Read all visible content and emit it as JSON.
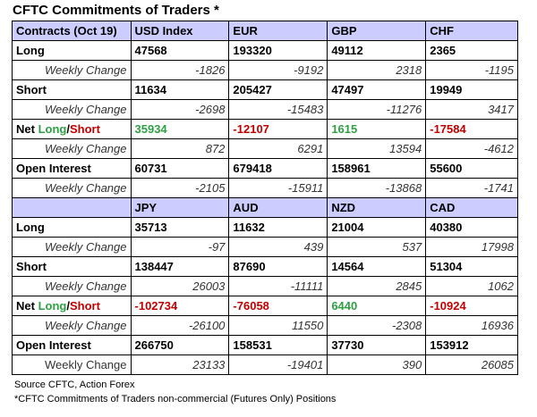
{
  "title": "CFTC Commitments of Traders *",
  "top_section": {
    "header": [
      "Contracts (Oct 19)",
      "USD Index",
      "EUR",
      "GBP",
      "CHF"
    ],
    "long_label": "Long",
    "long": [
      "47568",
      "193320",
      "49112",
      "2365"
    ],
    "long_change_label": "Weekly Change",
    "long_change": [
      "-1826",
      "-9192",
      "2318",
      "-1195"
    ],
    "short_label": "Short",
    "short": [
      "11634",
      "205427",
      "47497",
      "19949"
    ],
    "short_change_label": "Weekly Change",
    "short_change": [
      "-2698",
      "-15483",
      "-11276",
      "3417"
    ],
    "net_label_prefix": "Net ",
    "net_label_long": "Long",
    "net_label_sep": "/",
    "net_label_short": "Short",
    "net": [
      "35934",
      "-12107",
      "1615",
      "-17584"
    ],
    "net_change_label": "Weekly Change",
    "net_change": [
      "872",
      "6291",
      "13594",
      "-4612"
    ],
    "oi_label": "Open Interest",
    "oi": [
      "60731",
      "679418",
      "158961",
      "55600"
    ],
    "oi_change_label": "Weekly Change",
    "oi_change": [
      "-2105",
      "-15911",
      "-13868",
      "-1741"
    ]
  },
  "bottom_section": {
    "header": [
      "",
      "JPY",
      "AUD",
      "NZD",
      "CAD"
    ],
    "long_label": "Long",
    "long": [
      "35713",
      "11632",
      "21004",
      "40380"
    ],
    "long_change_label": "Weekly Change",
    "long_change": [
      "-97",
      "439",
      "537",
      "17998"
    ],
    "short_label": "Short",
    "short": [
      "138447",
      "87690",
      "14564",
      "51304"
    ],
    "short_change_label": "Weekly Change",
    "short_change": [
      "26003",
      "-11111",
      "2845",
      "1062"
    ],
    "net_label_prefix": "Net ",
    "net_label_long": "Long",
    "net_label_sep": "/",
    "net_label_short": "Short",
    "net": [
      "-102734",
      "-76058",
      "6440",
      "-10924"
    ],
    "net_change_label": "Weekly Change",
    "net_change": [
      "-26100",
      "11550",
      "-2308",
      "16936"
    ],
    "oi_label": "Open Interest",
    "oi": [
      "266750",
      "158531",
      "37730",
      "153912"
    ],
    "oi_change_label": "Weekly Change",
    "oi_change": [
      "23133",
      "-19401",
      "390",
      "26085"
    ]
  },
  "colors": {
    "header_bg": "#ccccff",
    "positive_net": "#2ea043",
    "negative_net": "#c00000"
  },
  "footer": {
    "source": "Source CFTC, Action Forex",
    "note": "*CFTC Commitments of Traders non-commercial (Futures Only) Positions"
  }
}
